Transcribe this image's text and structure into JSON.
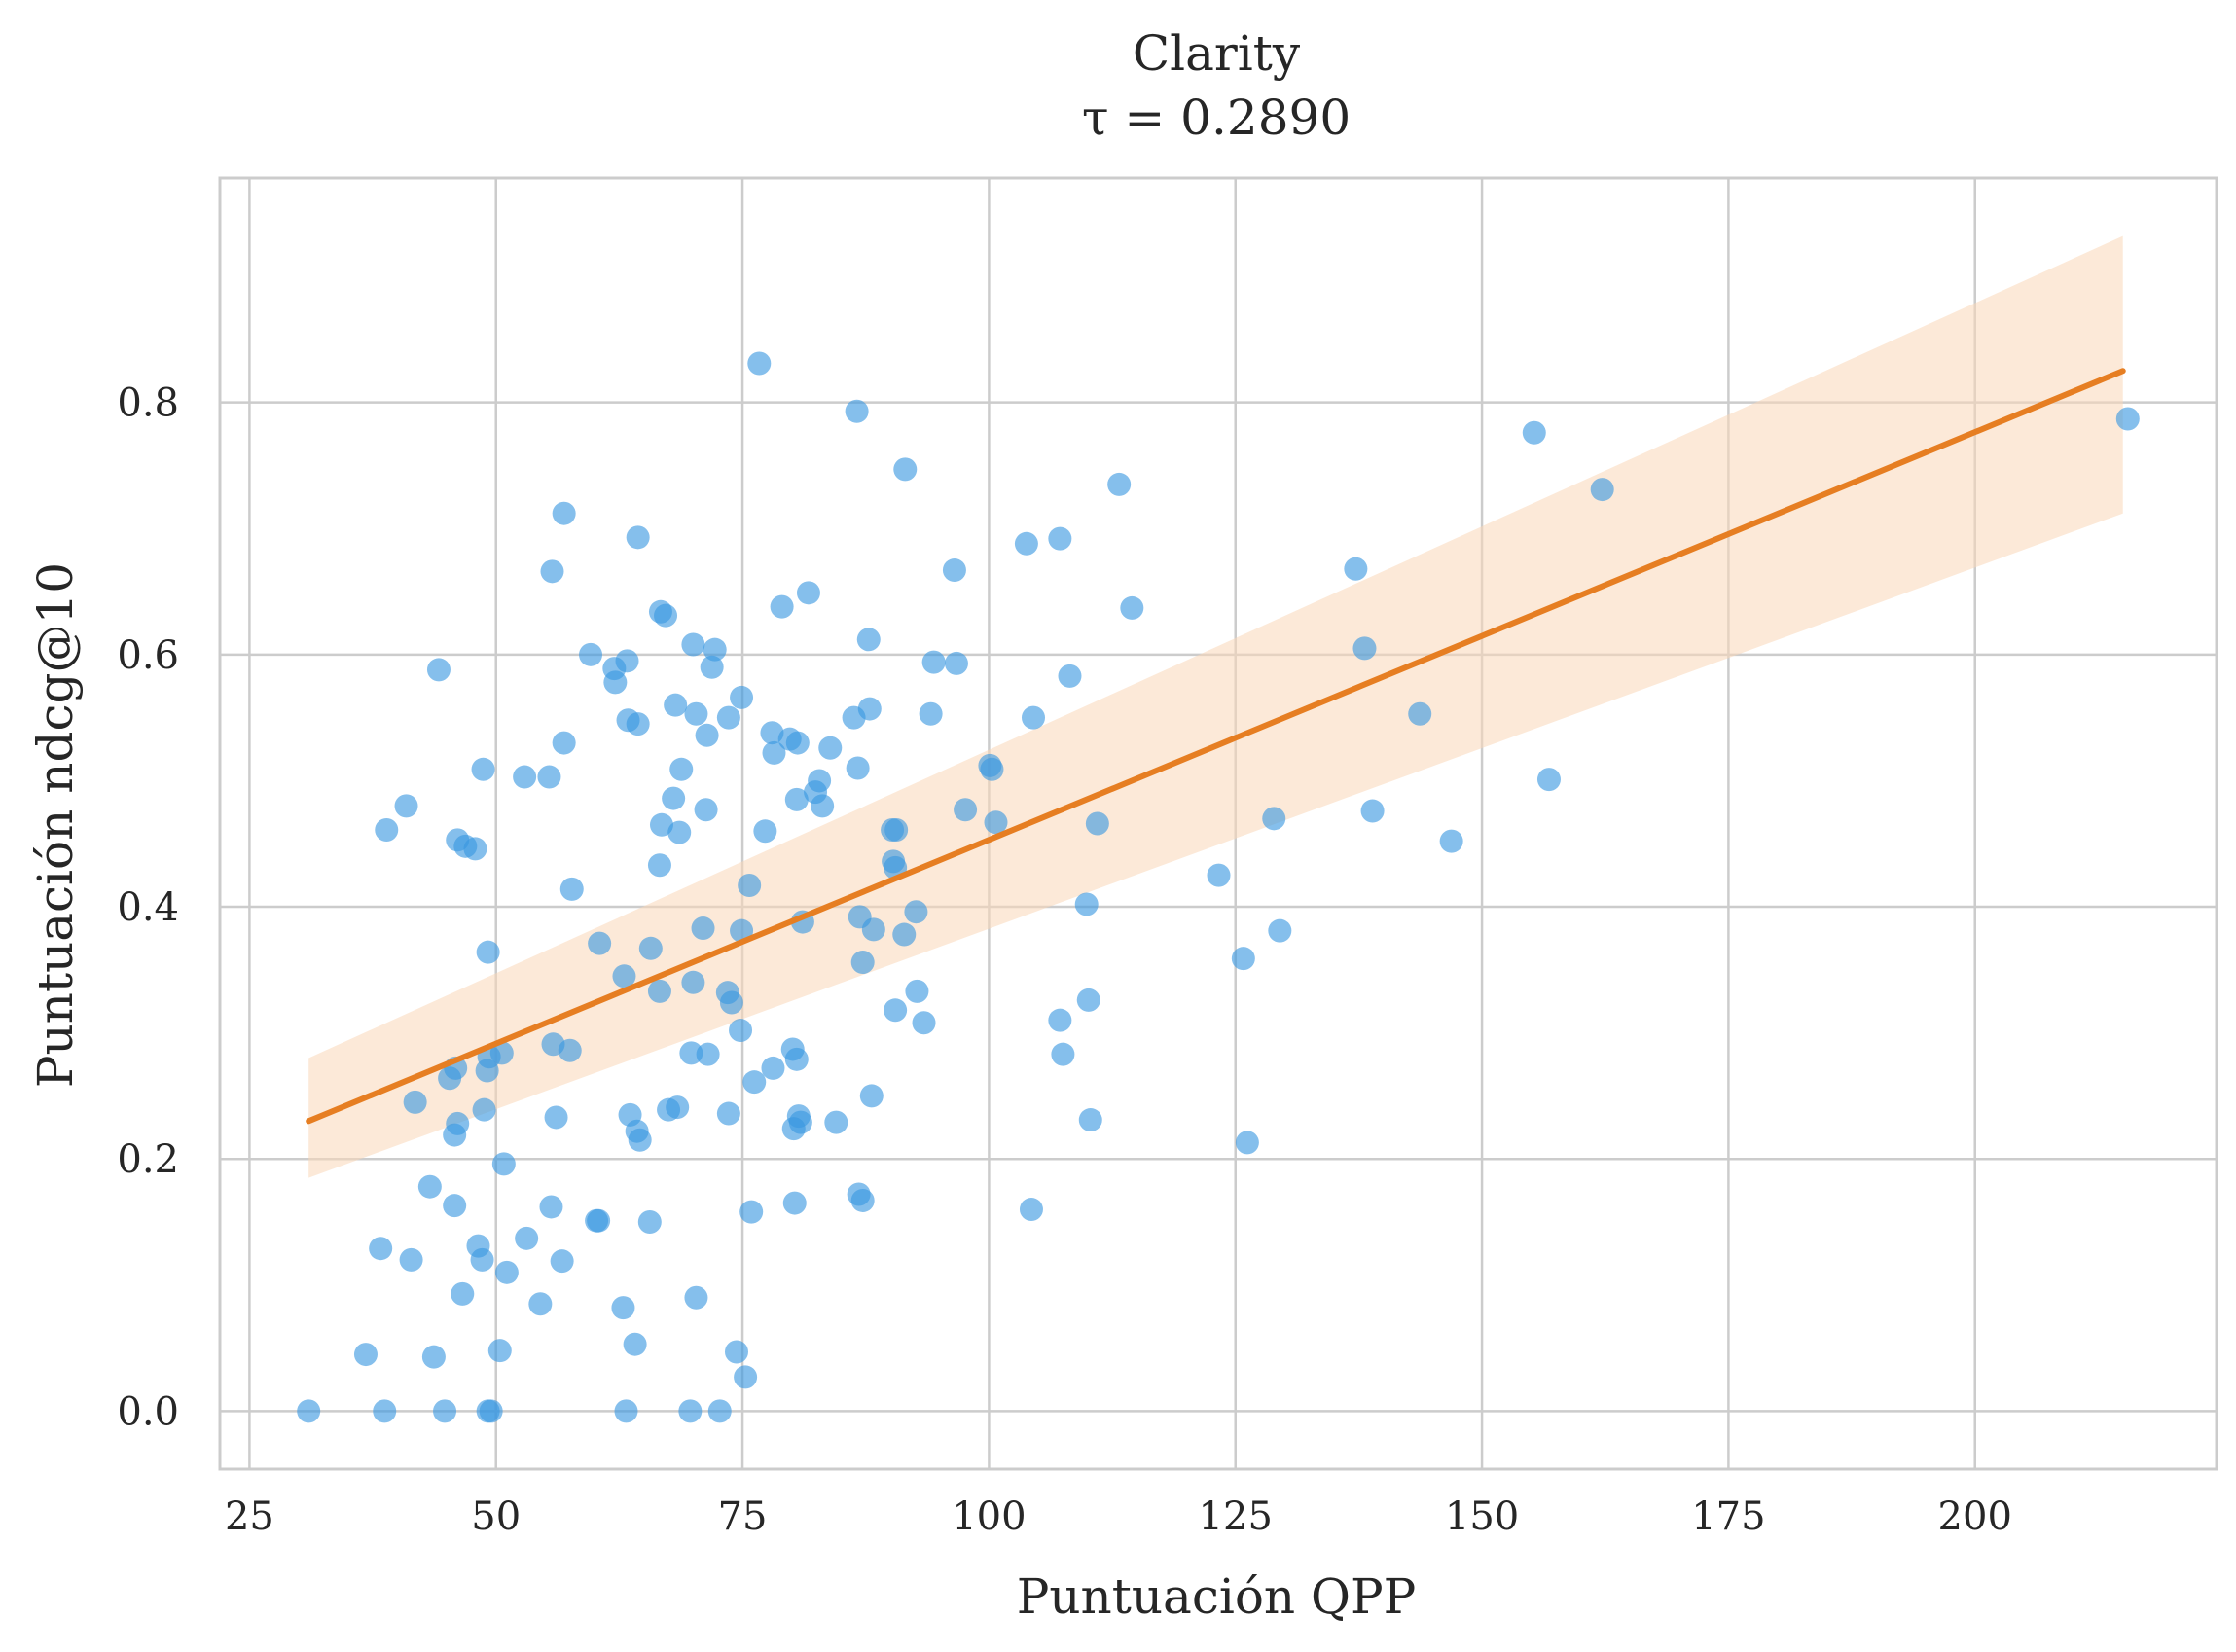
{
  "chart_data": {
    "type": "scatter",
    "title": "Clarity",
    "subtitle": "τ = 0.2890",
    "xlabel": "Puntuación QPP",
    "ylabel": "Puntuación ndcg@10",
    "xlim": [
      22,
      224.5
    ],
    "ylim": [
      -0.046,
      0.978
    ],
    "xticks": [
      25,
      50,
      75,
      100,
      125,
      150,
      175,
      200
    ],
    "xtick_labels": [
      "25",
      "50",
      "75",
      "100",
      "125",
      "150",
      "175",
      "200"
    ],
    "yticks": [
      0.0,
      0.2,
      0.4,
      0.6,
      0.8
    ],
    "ytick_labels": [
      "0.0",
      "0.2",
      "0.4",
      "0.6",
      "0.8"
    ],
    "grid": true,
    "colors": {
      "points": "#3a98e0",
      "line": "#e67e22",
      "band": "#fad7b8",
      "grid": "#cccccc",
      "spine": "#cccccc"
    },
    "regression": {
      "x": [
        31,
        215
      ],
      "y": [
        0.23,
        0.825
      ],
      "ci_low": [
        0.185,
        0.712
      ],
      "ci_high": [
        0.28,
        0.932
      ]
    },
    "points": [
      [
        31.0,
        0.0
      ],
      [
        38.7,
        0.0
      ],
      [
        44.8,
        0.0
      ],
      [
        49.2,
        0.0
      ],
      [
        49.5,
        0.0
      ],
      [
        63.2,
        0.0
      ],
      [
        69.7,
        0.0
      ],
      [
        72.7,
        0.0
      ],
      [
        36.8,
        0.045
      ],
      [
        43.7,
        0.043
      ],
      [
        50.4,
        0.048
      ],
      [
        64.1,
        0.053
      ],
      [
        74.4,
        0.047
      ],
      [
        75.3,
        0.027
      ],
      [
        38.3,
        0.129
      ],
      [
        41.4,
        0.12
      ],
      [
        43.3,
        0.178
      ],
      [
        45.8,
        0.163
      ],
      [
        46.6,
        0.093
      ],
      [
        48.2,
        0.131
      ],
      [
        48.6,
        0.12
      ],
      [
        51.1,
        0.11
      ],
      [
        53.1,
        0.137
      ],
      [
        54.5,
        0.085
      ],
      [
        55.6,
        0.162
      ],
      [
        56.7,
        0.119
      ],
      [
        60.2,
        0.151
      ],
      [
        60.4,
        0.151
      ],
      [
        62.9,
        0.082
      ],
      [
        65.6,
        0.15
      ],
      [
        70.3,
        0.09
      ],
      [
        75.9,
        0.158
      ],
      [
        80.3,
        0.165
      ],
      [
        41.8,
        0.245
      ],
      [
        45.3,
        0.264
      ],
      [
        45.9,
        0.272
      ],
      [
        45.8,
        0.219
      ],
      [
        46.1,
        0.228
      ],
      [
        48.8,
        0.239
      ],
      [
        49.1,
        0.27
      ],
      [
        49.3,
        0.281
      ],
      [
        50.6,
        0.284
      ],
      [
        50.8,
        0.196
      ],
      [
        55.8,
        0.291
      ],
      [
        56.1,
        0.233
      ],
      [
        57.5,
        0.286
      ],
      [
        63.6,
        0.235
      ],
      [
        64.3,
        0.222
      ],
      [
        64.6,
        0.215
      ],
      [
        67.5,
        0.239
      ],
      [
        68.4,
        0.241
      ],
      [
        69.8,
        0.284
      ],
      [
        71.5,
        0.283
      ],
      [
        73.6,
        0.236
      ],
      [
        74.8,
        0.302
      ],
      [
        76.2,
        0.261
      ],
      [
        78.1,
        0.272
      ],
      [
        80.1,
        0.287
      ],
      [
        80.5,
        0.279
      ],
      [
        80.2,
        0.224
      ],
      [
        80.7,
        0.234
      ],
      [
        80.9,
        0.229
      ],
      [
        84.5,
        0.229
      ],
      [
        86.8,
        0.172
      ],
      [
        87.2,
        0.167
      ],
      [
        88.1,
        0.25
      ],
      [
        104.3,
        0.16
      ],
      [
        107.2,
        0.31
      ],
      [
        107.5,
        0.283
      ],
      [
        110.1,
        0.326
      ],
      [
        110.3,
        0.231
      ],
      [
        126.2,
        0.213
      ],
      [
        49.2,
        0.364
      ],
      [
        57.7,
        0.414
      ],
      [
        60.5,
        0.371
      ],
      [
        63.0,
        0.345
      ],
      [
        65.7,
        0.367
      ],
      [
        66.6,
        0.333
      ],
      [
        70.0,
        0.34
      ],
      [
        71.0,
        0.383
      ],
      [
        73.5,
        0.332
      ],
      [
        73.9,
        0.324
      ],
      [
        74.9,
        0.381
      ],
      [
        75.7,
        0.417
      ],
      [
        81.1,
        0.388
      ],
      [
        86.9,
        0.392
      ],
      [
        87.2,
        0.356
      ],
      [
        88.3,
        0.382
      ],
      [
        90.5,
        0.318
      ],
      [
        91.4,
        0.378
      ],
      [
        92.6,
        0.396
      ],
      [
        92.7,
        0.333
      ],
      [
        93.4,
        0.308
      ],
      [
        109.9,
        0.402
      ],
      [
        123.3,
        0.425
      ],
      [
        125.8,
        0.359
      ],
      [
        129.5,
        0.381
      ],
      [
        38.9,
        0.461
      ],
      [
        40.9,
        0.48
      ],
      [
        46.1,
        0.453
      ],
      [
        46.9,
        0.448
      ],
      [
        47.9,
        0.446
      ],
      [
        48.7,
        0.509
      ],
      [
        52.9,
        0.503
      ],
      [
        55.4,
        0.503
      ],
      [
        56.9,
        0.53
      ],
      [
        63.4,
        0.548
      ],
      [
        64.4,
        0.545
      ],
      [
        66.6,
        0.433
      ],
      [
        66.8,
        0.465
      ],
      [
        68.0,
        0.486
      ],
      [
        68.6,
        0.459
      ],
      [
        68.8,
        0.509
      ],
      [
        71.3,
        0.477
      ],
      [
        71.4,
        0.536
      ],
      [
        73.6,
        0.55
      ],
      [
        74.9,
        0.566
      ],
      [
        77.3,
        0.46
      ],
      [
        78.0,
        0.538
      ],
      [
        78.2,
        0.522
      ],
      [
        79.8,
        0.533
      ],
      [
        80.5,
        0.485
      ],
      [
        80.6,
        0.53
      ],
      [
        82.4,
        0.491
      ],
      [
        82.8,
        0.5
      ],
      [
        83.1,
        0.48
      ],
      [
        83.9,
        0.526
      ],
      [
        86.3,
        0.55
      ],
      [
        86.7,
        0.51
      ],
      [
        87.9,
        0.557
      ],
      [
        90.2,
        0.461
      ],
      [
        90.6,
        0.461
      ],
      [
        90.3,
        0.436
      ],
      [
        90.5,
        0.431
      ],
      [
        94.1,
        0.553
      ],
      [
        97.6,
        0.477
      ],
      [
        100.1,
        0.512
      ],
      [
        100.3,
        0.509
      ],
      [
        100.7,
        0.467
      ],
      [
        104.5,
        0.55
      ],
      [
        111.0,
        0.466
      ],
      [
        128.9,
        0.47
      ],
      [
        138.9,
        0.476
      ],
      [
        146.9,
        0.452
      ],
      [
        156.8,
        0.501
      ],
      [
        44.2,
        0.588
      ],
      [
        59.6,
        0.6
      ],
      [
        62.0,
        0.589
      ],
      [
        62.1,
        0.578
      ],
      [
        63.3,
        0.595
      ],
      [
        66.7,
        0.634
      ],
      [
        67.2,
        0.631
      ],
      [
        68.2,
        0.56
      ],
      [
        70.0,
        0.608
      ],
      [
        70.3,
        0.553
      ],
      [
        71.9,
        0.59
      ],
      [
        72.2,
        0.604
      ],
      [
        79.0,
        0.638
      ],
      [
        81.7,
        0.649
      ],
      [
        87.8,
        0.612
      ],
      [
        94.4,
        0.594
      ],
      [
        96.7,
        0.593
      ],
      [
        108.2,
        0.583
      ],
      [
        114.5,
        0.637
      ],
      [
        138.1,
        0.605
      ],
      [
        143.7,
        0.553
      ],
      [
        55.7,
        0.666
      ],
      [
        56.9,
        0.712
      ],
      [
        64.4,
        0.693
      ],
      [
        76.7,
        0.831
      ],
      [
        86.6,
        0.793
      ],
      [
        91.5,
        0.747
      ],
      [
        96.5,
        0.667
      ],
      [
        103.8,
        0.688
      ],
      [
        107.2,
        0.692
      ],
      [
        113.2,
        0.735
      ],
      [
        137.2,
        0.668
      ],
      [
        155.3,
        0.776
      ],
      [
        162.2,
        0.731
      ],
      [
        215.5,
        0.787
      ]
    ]
  }
}
